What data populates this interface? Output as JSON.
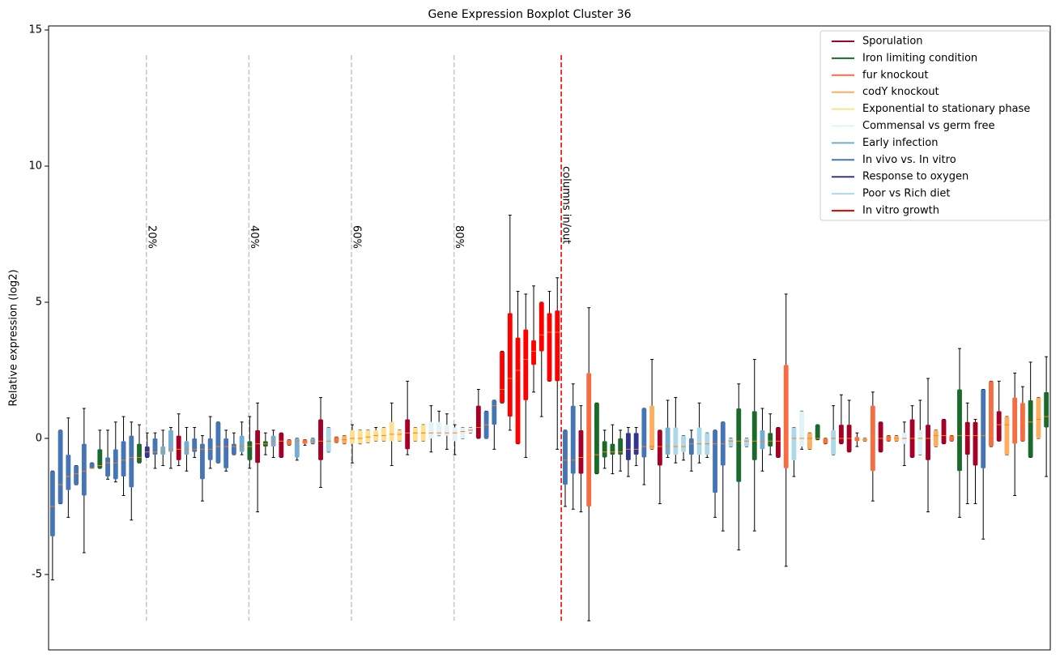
{
  "chart_data": {
    "type": "boxplot",
    "title": "Gene Expression Boxplot Cluster 36",
    "y_label": "Relative expression (log2)",
    "ylim": [
      -7.77,
      15.15
    ],
    "yticks": [
      -5,
      0,
      5,
      10,
      15
    ],
    "xlim": [
      0.5,
      127.5
    ],
    "legend": "upper right",
    "median_color": "#ff7f0e",
    "series": [
      {
        "name": "Sporulation",
        "color": "#a50026"
      },
      {
        "name": "Iron limiting condition",
        "color": "#1a6b2b"
      },
      {
        "name": "fur knockout",
        "color": "#f46d43"
      },
      {
        "name": "codY knockout",
        "color": "#fdae61"
      },
      {
        "name": "Exponential to stationary phase",
        "color": "#fee090"
      },
      {
        "name": "Commensal vs germ free",
        "color": "#e0f3f8"
      },
      {
        "name": "Early infection",
        "color": "#74add1"
      },
      {
        "name": "In vivo vs. In vitro",
        "color": "#4575b4"
      },
      {
        "name": "Response to oxygen",
        "color": "#313695"
      },
      {
        "name": "Poor vs Rich diet",
        "color": "#abd9e9"
      },
      {
        "name": "In vitro growth",
        "color": "#ff0000"
      }
    ],
    "reference_lines": [
      {
        "label": "20%",
        "x": 12.9,
        "color": "#c8c8c8"
      },
      {
        "label": "40%",
        "x": 25.9,
        "color": "#c8c8c8"
      },
      {
        "label": "60%",
        "x": 38.9,
        "color": "#c8c8c8"
      },
      {
        "label": "80%",
        "x": 51.9,
        "color": "#c8c8c8"
      },
      {
        "label": "columns in/out",
        "x": 65.5,
        "color": "#ff0000"
      }
    ],
    "boxes": {
      "whislo": [
        -5.2,
        -2.4,
        -2.9,
        -1.7,
        -4.2,
        -1.1,
        -1.1,
        -1.5,
        -1.6,
        -2.1,
        -3.0,
        -0.9,
        -0.7,
        -1.1,
        -1.0,
        -1.1,
        -1.0,
        -1.2,
        -0.7,
        -2.3,
        -1.1,
        -0.9,
        -1.2,
        -0.6,
        -0.6,
        -1.1,
        -2.7,
        -0.6,
        -0.7,
        -0.7,
        -0.25,
        -0.8,
        -0.25,
        -0.2,
        -1.8,
        -0.5,
        -0.15,
        -0.2,
        -0.9,
        -0.2,
        -0.15,
        -0.1,
        -0.1,
        -1.0,
        -0.1,
        -0.6,
        -0.1,
        -0.1,
        -0.5,
        0.1,
        -0.4,
        -0.6,
        0.0,
        0.2,
        0.0,
        0.0,
        -0.4,
        1.3,
        0.3,
        -0.2,
        -0.7,
        1.7,
        0.8,
        2.1,
        -0.4,
        -2.5,
        -2.6,
        -2.7,
        -6.7,
        -1.3,
        -1.1,
        -1.3,
        -1.2,
        -1.4,
        -1.0,
        -1.7,
        -0.4,
        -2.4,
        -0.7,
        -0.9,
        -0.8,
        -1.2,
        -0.9,
        -0.7,
        -2.9,
        -3.4,
        -0.3,
        -4.1,
        -0.3,
        -3.4,
        -1.2,
        -0.6,
        -0.7,
        -4.7,
        -1.4,
        -0.4,
        -0.4,
        -0.05,
        -0.2,
        -0.6,
        -0.2,
        -0.5,
        -0.3,
        -0.1,
        -2.3,
        -0.5,
        -0.1,
        -0.1,
        -1.0,
        -0.7,
        -0.6,
        -2.7,
        -0.3,
        -0.2,
        -0.1,
        -2.9,
        -2.4,
        -2.4,
        -3.7,
        -0.3,
        -0.1,
        -0.6,
        -2.1,
        -0.1,
        -0.7,
        0.0,
        -1.4
      ],
      "q1": [
        -3.6,
        -2.4,
        -1.9,
        -1.7,
        -2.1,
        -1.1,
        -1.1,
        -1.4,
        -1.5,
        -1.4,
        -1.8,
        -0.9,
        -0.7,
        -0.6,
        -0.6,
        -0.5,
        -0.8,
        -0.6,
        -0.5,
        -1.5,
        -0.8,
        -0.9,
        -1.1,
        -0.6,
        -0.5,
        -0.8,
        -0.9,
        -0.3,
        -0.3,
        -0.7,
        -0.25,
        -0.7,
        -0.2,
        -0.2,
        -0.8,
        -0.5,
        -0.15,
        -0.2,
        -0.2,
        -0.2,
        -0.15,
        -0.1,
        -0.1,
        -0.1,
        -0.1,
        -0.4,
        -0.1,
        -0.1,
        0.0,
        0.1,
        0.1,
        -0.1,
        0.0,
        0.2,
        0.0,
        0.0,
        0.5,
        1.3,
        0.8,
        -0.2,
        1.4,
        2.7,
        3.2,
        2.1,
        2.1,
        -1.7,
        -1.3,
        -1.3,
        -2.5,
        -1.3,
        -0.7,
        -0.6,
        -0.6,
        -0.8,
        -0.6,
        -0.7,
        -0.4,
        -1.0,
        -0.6,
        -0.6,
        -0.5,
        -0.6,
        -0.6,
        -0.6,
        -2.0,
        -1.0,
        -0.3,
        -1.6,
        -0.3,
        -0.8,
        -0.4,
        -0.3,
        -0.7,
        -1.1,
        -0.8,
        -0.3,
        -0.4,
        -0.05,
        -0.2,
        -0.6,
        -0.2,
        -0.5,
        -0.1,
        -0.1,
        -1.2,
        -0.5,
        -0.1,
        -0.1,
        -0.2,
        -0.7,
        -0.6,
        -0.8,
        -0.3,
        -0.2,
        -0.1,
        -1.2,
        -0.6,
        -1.0,
        -1.1,
        -0.3,
        -0.1,
        -0.6,
        -0.2,
        -0.1,
        -0.7,
        0.0,
        0.4
      ],
      "median": [
        -2.5,
        -1.7,
        -1.4,
        -1.3,
        -1.2,
        -1.1,
        -1.0,
        -0.9,
        -0.9,
        -0.8,
        -0.7,
        -0.7,
        -0.5,
        -0.5,
        -0.5,
        -0.4,
        -0.4,
        -0.4,
        -0.4,
        -0.4,
        -0.4,
        -0.3,
        -0.3,
        -0.3,
        -0.3,
        -0.3,
        -0.2,
        -0.2,
        -0.1,
        -0.1,
        -0.15,
        -0.1,
        -0.15,
        -0.1,
        -0.1,
        -0.1,
        -0.05,
        -0.05,
        0.0,
        0.0,
        0.05,
        0.1,
        0.1,
        0.15,
        0.15,
        0.2,
        0.2,
        0.2,
        0.2,
        0.2,
        0.2,
        0.2,
        0.25,
        0.3,
        0.4,
        0.5,
        1.2,
        1.8,
        2.2,
        2.5,
        2.9,
        3.2,
        3.8,
        3.9,
        3.9,
        -0.8,
        -0.8,
        -0.7,
        -0.6,
        -0.6,
        -0.5,
        -0.5,
        -0.5,
        -0.4,
        -0.4,
        -0.3,
        -0.3,
        -0.3,
        -0.3,
        -0.3,
        -0.3,
        -0.2,
        -0.2,
        -0.2,
        -0.2,
        -0.2,
        -0.1,
        -0.1,
        -0.1,
        -0.1,
        -0.1,
        -0.1,
        -0.1,
        0.0,
        0.0,
        0.0,
        0.0,
        0.0,
        -0.1,
        0.0,
        0.0,
        0.0,
        0.0,
        -0.05,
        0.0,
        0.0,
        0.0,
        0.0,
        0.0,
        0.0,
        0.0,
        0.0,
        0.1,
        0.1,
        0.05,
        0.1,
        0.1,
        0.1,
        0.1,
        0.1,
        0.5,
        0.5,
        0.5,
        0.6,
        0.6,
        0.7,
        0.8
      ],
      "q3": [
        -1.2,
        0.3,
        -0.6,
        -1.0,
        -0.2,
        -0.9,
        -0.4,
        -0.7,
        -0.4,
        -0.1,
        0.1,
        -0.2,
        -0.3,
        0.0,
        -0.3,
        0.3,
        0.1,
        -0.1,
        0.0,
        -0.2,
        0.0,
        0.6,
        0.0,
        -0.2,
        0.1,
        -0.1,
        0.3,
        -0.1,
        0.1,
        0.2,
        -0.05,
        0.0,
        -0.05,
        0.0,
        0.7,
        0.4,
        0.05,
        0.1,
        0.3,
        0.3,
        0.3,
        0.3,
        0.4,
        0.6,
        0.3,
        0.7,
        0.4,
        0.5,
        0.6,
        0.6,
        0.5,
        0.4,
        0.4,
        0.4,
        1.2,
        1.0,
        1.4,
        3.2,
        4.6,
        3.7,
        4.0,
        3.6,
        5.0,
        4.6,
        4.7,
        0.3,
        1.2,
        0.3,
        2.4,
        1.3,
        -0.1,
        -0.2,
        0.0,
        0.2,
        0.2,
        1.1,
        1.2,
        0.3,
        0.4,
        0.4,
        0.1,
        0.0,
        0.4,
        0.2,
        0.3,
        0.6,
        0.0,
        1.1,
        0.0,
        1.0,
        0.3,
        0.2,
        0.4,
        2.7,
        0.4,
        1.0,
        0.2,
        0.5,
        0.0,
        0.3,
        0.5,
        0.5,
        0.05,
        0.0,
        1.2,
        0.6,
        0.1,
        0.1,
        0.2,
        0.7,
        0.3,
        0.5,
        0.3,
        0.7,
        0.1,
        1.8,
        0.6,
        0.6,
        1.8,
        2.1,
        1.0,
        0.8,
        1.5,
        1.3,
        1.4,
        1.5,
        1.7
      ],
      "whishi": [
        -1.2,
        0.3,
        0.75,
        -1.0,
        1.1,
        -0.9,
        0.3,
        0.3,
        0.6,
        0.8,
        0.6,
        0.5,
        0.2,
        0.2,
        0.3,
        0.4,
        0.9,
        0.4,
        0.4,
        0.1,
        0.8,
        0.6,
        0.3,
        0.2,
        0.6,
        0.8,
        1.3,
        0.2,
        0.3,
        0.2,
        -0.05,
        0.0,
        -0.05,
        0.0,
        1.5,
        0.4,
        0.05,
        0.1,
        0.5,
        0.3,
        0.3,
        0.4,
        0.4,
        1.3,
        0.3,
        2.1,
        0.4,
        0.5,
        1.2,
        1.0,
        0.9,
        0.5,
        0.4,
        0.4,
        1.8,
        1.0,
        1.4,
        3.2,
        8.2,
        5.4,
        5.3,
        5.6,
        5.0,
        5.4,
        5.9,
        0.3,
        2.0,
        1.2,
        4.8,
        1.3,
        0.3,
        0.5,
        0.3,
        0.4,
        0.4,
        1.1,
        2.9,
        0.3,
        1.4,
        1.5,
        0.1,
        0.3,
        1.3,
        0.2,
        0.3,
        0.6,
        0.0,
        2.0,
        0.0,
        2.9,
        1.1,
        0.9,
        0.4,
        5.3,
        0.4,
        1.0,
        0.2,
        0.5,
        0.0,
        1.2,
        1.6,
        1.4,
        0.2,
        0.0,
        1.7,
        0.6,
        0.1,
        0.1,
        0.6,
        1.2,
        1.4,
        2.2,
        0.3,
        0.7,
        0.1,
        3.3,
        1.3,
        0.7,
        1.8,
        2.1,
        2.1,
        0.8,
        2.4,
        1.9,
        2.8,
        1.5,
        3.0
      ],
      "colors": [
        "#4575b4",
        "#4575b4",
        "#4575b4",
        "#4575b4",
        "#4575b4",
        "#4575b4",
        "#1a6b2b",
        "#4575b4",
        "#4575b4",
        "#4575b4",
        "#4575b4",
        "#1a6b2b",
        "#313695",
        "#4575b4",
        "#74add1",
        "#74add1",
        "#a50026",
        "#74add1",
        "#4575b4",
        "#4575b4",
        "#4575b4",
        "#4575b4",
        "#4575b4",
        "#4575b4",
        "#74add1",
        "#1a6b2b",
        "#a50026",
        "#1a6b2b",
        "#74add1",
        "#a50026",
        "#f46d43",
        "#74add1",
        "#f46d43",
        "#74add1",
        "#a50026",
        "#abd9e9",
        "#f46d43",
        "#fdae61",
        "#fee090",
        "#fee090",
        "#fee090",
        "#fee090",
        "#fee090",
        "#fee090",
        "#fee090",
        "#a50026",
        "#fee090",
        "#fee090",
        "#e0f3f8",
        "#e0f3f8",
        "#e0f3f8",
        "#e0f3f8",
        "#e0f3f8",
        "#e0f3f8",
        "#a50026",
        "#4575b4",
        "#4575b4",
        "#ff0000",
        "#ff0000",
        "#ff0000",
        "#ff0000",
        "#ff0000",
        "#ff0000",
        "#ff0000",
        "#ff0000",
        "#4575b4",
        "#4575b4",
        "#a50026",
        "#f46d43",
        "#1a6b2b",
        "#1a6b2b",
        "#1a6b2b",
        "#1a6b2b",
        "#313695",
        "#313695",
        "#4575b4",
        "#fdae61",
        "#a50026",
        "#74add1",
        "#abd9e9",
        "#abd9e9",
        "#4575b4",
        "#abd9e9",
        "#abd9e9",
        "#4575b4",
        "#4575b4",
        "#abd9e9",
        "#1a6b2b",
        "#abd9e9",
        "#1a6b2b",
        "#74add1",
        "#1a6b2b",
        "#a50026",
        "#f46d43",
        "#abd9e9",
        "#e0f3f8",
        "#fdae61",
        "#1a6b2b",
        "#f46d43",
        "#abd9e9",
        "#a50026",
        "#a50026",
        "#f46d43",
        "#fdae61",
        "#f46d43",
        "#a50026",
        "#f46d43",
        "#fdae61",
        "#e0f3f8",
        "#a50026",
        "#e0f3f8",
        "#a50026",
        "#fdae61",
        "#a50026",
        "#f46d43",
        "#1a6b2b",
        "#a50026",
        "#a50026",
        "#4575b4",
        "#f46d43",
        "#a50026",
        "#fdae61",
        "#f46d43",
        "#f46d43",
        "#1a6b2b",
        "#fdae61",
        "#1a6b2b"
      ]
    }
  }
}
